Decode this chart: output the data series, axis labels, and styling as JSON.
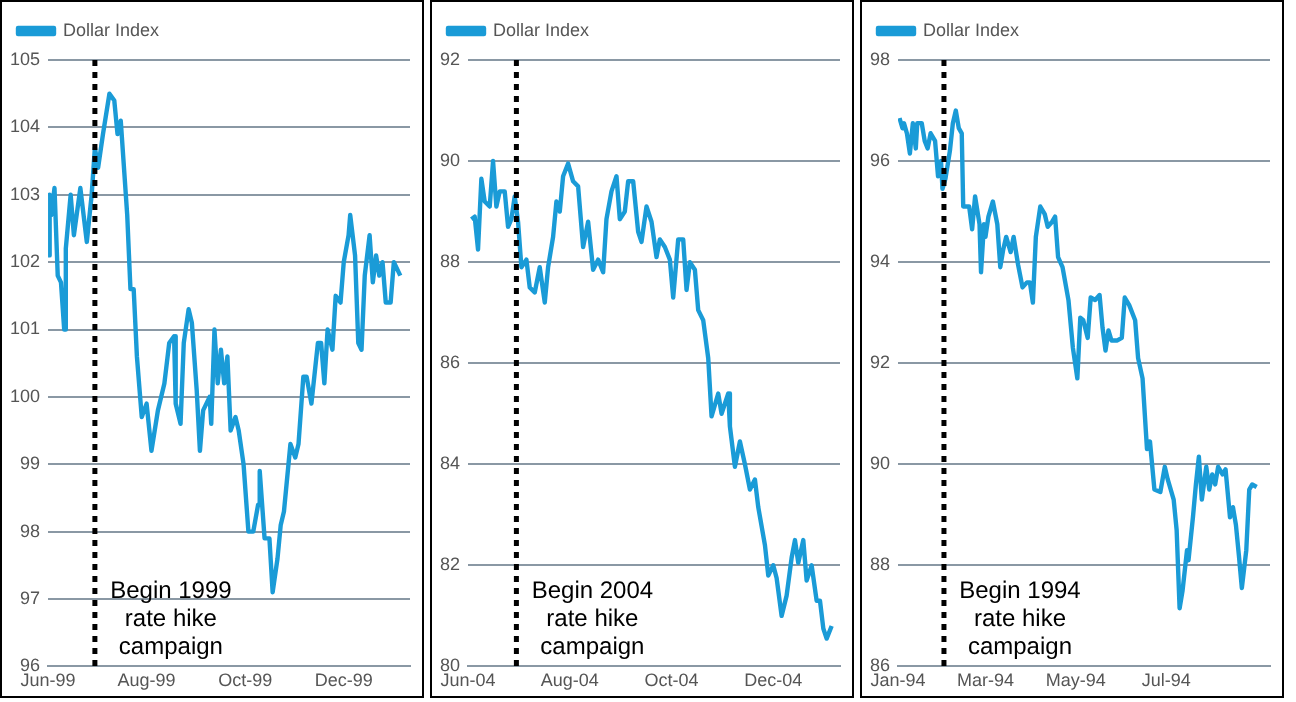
{
  "chart_data": [
    {
      "type": "line",
      "legend": "top left",
      "grid": "y",
      "marker": "none",
      "xlim": [
        "1999-06-01",
        "2000-01-11"
      ],
      "ylim": [
        96,
        105
      ],
      "yticks": [
        96,
        97,
        98,
        99,
        100,
        101,
        102,
        103,
        104,
        105
      ],
      "xticks": [
        {
          "value": "1999-06-01",
          "label": "Jun-99"
        },
        {
          "value": "1999-08-01",
          "label": "Aug-99"
        },
        {
          "value": "1999-10-01",
          "label": "Oct-99"
        },
        {
          "value": "1999-12-01",
          "label": "Dec-99"
        }
      ],
      "x": [
        "1999-06-01",
        "1999-06-02",
        "1999-06-03",
        "1999-06-05",
        "1999-06-07",
        "1999-06-09",
        "1999-06-11",
        "1999-06-12",
        "1999-06-15",
        "1999-06-17",
        "1999-06-21",
        "1999-06-25",
        "1999-06-28",
        "1999-06-30",
        "1999-07-02",
        "1999-07-05",
        "1999-07-09",
        "1999-07-12",
        "1999-07-14",
        "1999-07-16",
        "1999-07-20",
        "1999-07-22",
        "1999-07-24",
        "1999-07-26",
        "1999-07-29",
        "1999-08-01",
        "1999-08-04",
        "1999-08-08",
        "1999-08-12",
        "1999-08-15",
        "1999-08-18",
        "1999-08-19",
        "1999-08-22",
        "1999-08-24",
        "1999-08-27",
        "1999-08-29",
        "1999-09-01",
        "1999-09-03",
        "1999-09-05",
        "1999-09-09",
        "1999-09-10",
        "1999-09-12",
        "1999-09-14",
        "1999-09-16",
        "1999-09-18",
        "1999-09-20",
        "1999-09-22",
        "1999-09-25",
        "1999-09-27",
        "1999-09-30",
        "1999-10-03",
        "1999-10-06",
        "1999-10-09",
        "1999-10-10",
        "1999-10-13",
        "1999-10-16",
        "1999-10-18",
        "1999-10-21",
        "1999-10-23",
        "1999-10-25",
        "1999-10-29",
        "1999-11-01",
        "1999-11-03",
        "1999-11-06",
        "1999-11-08",
        "1999-11-11",
        "1999-11-15",
        "1999-11-17",
        "1999-11-19",
        "1999-11-21",
        "1999-11-24",
        "1999-11-26",
        "1999-11-29",
        "1999-12-01",
        "1999-12-04",
        "1999-12-05",
        "1999-12-08",
        "1999-12-10",
        "1999-12-12",
        "1999-12-14",
        "1999-12-17",
        "1999-12-19",
        "1999-12-21",
        "1999-12-23",
        "1999-12-25",
        "1999-12-27",
        "1999-12-30",
        "2000-01-01",
        "2000-01-05"
      ],
      "series": [
        {
          "name": "Dollar Index",
          "color": "#1a9bd7",
          "values": [
            102.1,
            103.0,
            102.7,
            103.1,
            101.8,
            101.7,
            101.0,
            102.2,
            103.0,
            102.4,
            103.1,
            102.3,
            103.0,
            103.7,
            103.4,
            103.9,
            104.5,
            104.4,
            103.9,
            104.1,
            102.7,
            101.6,
            101.6,
            100.6,
            99.7,
            99.9,
            99.2,
            99.8,
            100.2,
            100.8,
            100.9,
            99.9,
            99.6,
            100.8,
            101.3,
            101.1,
            100.1,
            99.2,
            99.8,
            100.0,
            99.6,
            101.0,
            100.2,
            100.7,
            100.2,
            100.6,
            99.5,
            99.7,
            99.5,
            99.0,
            98.0,
            98.0,
            98.4,
            98.9,
            97.9,
            97.9,
            97.1,
            97.6,
            98.1,
            98.3,
            99.3,
            99.1,
            99.3,
            100.3,
            100.3,
            99.9,
            100.8,
            100.8,
            100.2,
            101.0,
            100.7,
            101.5,
            101.4,
            102.0,
            102.4,
            102.7,
            102.1,
            100.8,
            100.7,
            101.8,
            102.4,
            101.7,
            102.1,
            101.8,
            102.0,
            101.4,
            101.4,
            102.0,
            101.8
          ]
        }
      ],
      "ref_lines": [
        {
          "axis": "x",
          "value": "1999-06-30",
          "label": "Begin 1999 rate hike campaign",
          "color": "#000000",
          "line_style": "dotted"
        }
      ]
    },
    {
      "type": "line",
      "legend": "top left",
      "grid": "y",
      "marker": "none",
      "xlim": [
        "2004-06-01",
        "2005-01-10"
      ],
      "ylim": [
        80,
        92
      ],
      "yticks": [
        80,
        82,
        84,
        86,
        88,
        90,
        92
      ],
      "xticks": [
        {
          "value": "2004-06-01",
          "label": "Jun-04"
        },
        {
          "value": "2004-08-01",
          "label": "Aug-04"
        },
        {
          "value": "2004-10-01",
          "label": "Oct-04"
        },
        {
          "value": "2004-12-01",
          "label": "Dec-04"
        }
      ],
      "x": [
        "2004-06-03",
        "2004-06-05",
        "2004-06-07",
        "2004-06-09",
        "2004-06-11",
        "2004-06-14",
        "2004-06-16",
        "2004-06-18",
        "2004-06-20",
        "2004-06-23",
        "2004-06-25",
        "2004-06-27",
        "2004-06-29",
        "2004-07-01",
        "2004-07-03",
        "2004-07-06",
        "2004-07-08",
        "2004-07-11",
        "2004-07-14",
        "2004-07-17",
        "2004-07-19",
        "2004-07-22",
        "2004-07-24",
        "2004-07-26",
        "2004-07-28",
        "2004-07-31",
        "2004-08-03",
        "2004-08-06",
        "2004-08-09",
        "2004-08-12",
        "2004-08-15",
        "2004-08-18",
        "2004-08-21",
        "2004-08-23",
        "2004-08-26",
        "2004-08-29",
        "2004-08-31",
        "2004-09-03",
        "2004-09-05",
        "2004-09-08",
        "2004-09-11",
        "2004-09-13",
        "2004-09-16",
        "2004-09-19",
        "2004-09-22",
        "2004-09-24",
        "2004-09-27",
        "2004-09-30",
        "2004-10-02",
        "2004-10-05",
        "2004-10-08",
        "2004-10-10",
        "2004-10-12",
        "2004-10-15",
        "2004-10-17",
        "2004-10-20",
        "2004-10-23",
        "2004-10-25",
        "2004-10-29",
        "2004-10-31",
        "2004-11-04",
        "2004-11-05",
        "2004-11-08",
        "2004-11-11",
        "2004-11-14",
        "2004-11-17",
        "2004-11-20",
        "2004-11-22",
        "2004-11-26",
        "2004-11-28",
        "2004-12-01",
        "2004-12-03",
        "2004-12-06",
        "2004-12-09",
        "2004-12-12",
        "2004-12-14",
        "2004-12-16",
        "2004-12-19",
        "2004-12-21",
        "2004-12-24",
        "2004-12-27",
        "2004-12-29",
        "2004-12-31",
        "2005-01-02",
        "2005-01-05"
      ],
      "series": [
        {
          "name": "Dollar Index",
          "color": "#1a9bd7",
          "values": [
            88.85,
            88.9,
            88.25,
            89.65,
            89.2,
            89.1,
            90.0,
            89.1,
            89.4,
            89.4,
            88.7,
            88.85,
            89.3,
            88.8,
            87.9,
            88.05,
            87.5,
            87.4,
            87.9,
            87.2,
            87.9,
            88.5,
            89.2,
            89.0,
            89.7,
            89.95,
            89.6,
            89.5,
            88.3,
            88.8,
            87.85,
            88.05,
            87.8,
            88.85,
            89.4,
            89.7,
            88.85,
            89.0,
            89.6,
            89.6,
            88.6,
            88.4,
            89.1,
            88.8,
            88.1,
            88.45,
            88.3,
            88.05,
            87.3,
            88.45,
            88.45,
            87.45,
            88.0,
            87.85,
            87.05,
            86.85,
            86.1,
            84.95,
            85.4,
            85.0,
            85.4,
            84.75,
            83.95,
            84.45,
            84.0,
            83.5,
            83.7,
            83.15,
            82.4,
            81.8,
            82.0,
            81.75,
            81.0,
            81.4,
            82.15,
            82.5,
            82.05,
            82.5,
            81.7,
            82.0,
            81.3,
            81.3,
            80.75,
            80.55,
            80.8
          ]
        }
      ],
      "ref_lines": [
        {
          "axis": "x",
          "value": "2004-06-30",
          "label": "Begin 2004 rate hike campaign",
          "color": "#000000",
          "line_style": "dotted"
        }
      ]
    },
    {
      "type": "line",
      "legend": "top left",
      "grid": "y",
      "marker": "none",
      "xlim": [
        "1994-01-01",
        "1994-09-09"
      ],
      "ylim": [
        86,
        98
      ],
      "yticks": [
        86,
        88,
        90,
        92,
        94,
        96,
        98
      ],
      "xticks": [
        {
          "value": "1994-01-01",
          "label": "Jan-94"
        },
        {
          "value": "1994-03-01",
          "label": "Mar-94"
        },
        {
          "value": "1994-05-01",
          "label": "May-94"
        },
        {
          "value": "1994-07-01",
          "label": "Jul-94"
        }
      ],
      "x": [
        "1994-01-02",
        "1994-01-04",
        "1994-01-05",
        "1994-01-07",
        "1994-01-09",
        "1994-01-11",
        "1994-01-13",
        "1994-01-14",
        "1994-01-17",
        "1994-01-19",
        "1994-01-21",
        "1994-01-23",
        "1994-01-26",
        "1994-01-28",
        "1994-01-30",
        "1994-01-31",
        "1994-02-02",
        "1994-02-05",
        "1994-02-07",
        "1994-02-09",
        "1994-02-11",
        "1994-02-13",
        "1994-02-14",
        "1994-02-18",
        "1994-02-20",
        "1994-02-22",
        "1994-02-25",
        "1994-02-26",
        "1994-02-28",
        "1994-03-01",
        "1994-03-03",
        "1994-03-06",
        "1994-03-09",
        "1994-03-11",
        "1994-03-13",
        "1994-03-15",
        "1994-03-18",
        "1994-03-20",
        "1994-03-23",
        "1994-03-26",
        "1994-03-29",
        "1994-03-31",
        "1994-04-02",
        "1994-04-04",
        "1994-04-07",
        "1994-04-10",
        "1994-04-12",
        "1994-04-15",
        "1994-04-17",
        "1994-04-19",
        "1994-04-22",
        "1994-04-26",
        "1994-04-29",
        "1994-05-02",
        "1994-05-04",
        "1994-05-06",
        "1994-05-09",
        "1994-05-11",
        "1994-05-14",
        "1994-05-17",
        "1994-05-19",
        "1994-05-21",
        "1994-05-23",
        "1994-05-25",
        "1994-05-29",
        "1994-06-01",
        "1994-06-03",
        "1994-06-06",
        "1994-06-10",
        "1994-06-12",
        "1994-06-15",
        "1994-06-18",
        "1994-06-20",
        "1994-06-23",
        "1994-06-27",
        "1994-06-30",
        "1994-07-02",
        "1994-07-06",
        "1994-07-08",
        "1994-07-10",
        "1994-07-12",
        "1994-07-15",
        "1994-07-16",
        "1994-07-19",
        "1994-07-21",
        "1994-07-23",
        "1994-07-25",
        "1994-07-28",
        "1994-07-30",
        "1994-08-01",
        "1994-08-03",
        "1994-08-05",
        "1994-08-08",
        "1994-08-10",
        "1994-08-13",
        "1994-08-15",
        "1994-08-17",
        "1994-08-19",
        "1994-08-21",
        "1994-08-24",
        "1994-08-26",
        "1994-08-28",
        "1994-08-31"
      ],
      "series": [
        {
          "name": "Dollar Index",
          "color": "#1a9bd7",
          "values": [
            96.85,
            96.65,
            96.75,
            96.55,
            96.15,
            96.75,
            96.25,
            96.75,
            96.75,
            96.4,
            96.25,
            96.55,
            96.4,
            95.7,
            96.0,
            95.45,
            95.65,
            96.2,
            96.75,
            97.0,
            96.65,
            96.55,
            95.1,
            95.1,
            94.65,
            95.3,
            94.75,
            93.8,
            94.75,
            94.5,
            94.9,
            95.2,
            94.75,
            93.9,
            94.25,
            94.5,
            94.2,
            94.5,
            93.95,
            93.5,
            93.6,
            93.6,
            93.2,
            94.5,
            95.1,
            94.95,
            94.7,
            94.8,
            94.9,
            94.1,
            93.9,
            93.25,
            92.3,
            91.7,
            92.9,
            92.85,
            92.5,
            93.3,
            93.25,
            93.35,
            92.7,
            92.25,
            92.65,
            92.45,
            92.45,
            92.5,
            93.3,
            93.15,
            92.85,
            92.1,
            91.7,
            90.3,
            90.45,
            89.5,
            89.45,
            89.95,
            89.7,
            89.3,
            88.7,
            87.15,
            87.5,
            88.3,
            88.1,
            88.95,
            89.6,
            90.15,
            89.3,
            89.95,
            89.5,
            89.8,
            89.6,
            89.95,
            89.8,
            89.9,
            88.95,
            89.15,
            88.8,
            88.2,
            87.55,
            88.3,
            89.5,
            89.6,
            89.55
          ]
        }
      ],
      "ref_lines": [
        {
          "axis": "x",
          "value": "1994-02-01",
          "label": "Begin 1994 rate hike campaign",
          "color": "#000000",
          "line_style": "dotted"
        }
      ]
    }
  ]
}
